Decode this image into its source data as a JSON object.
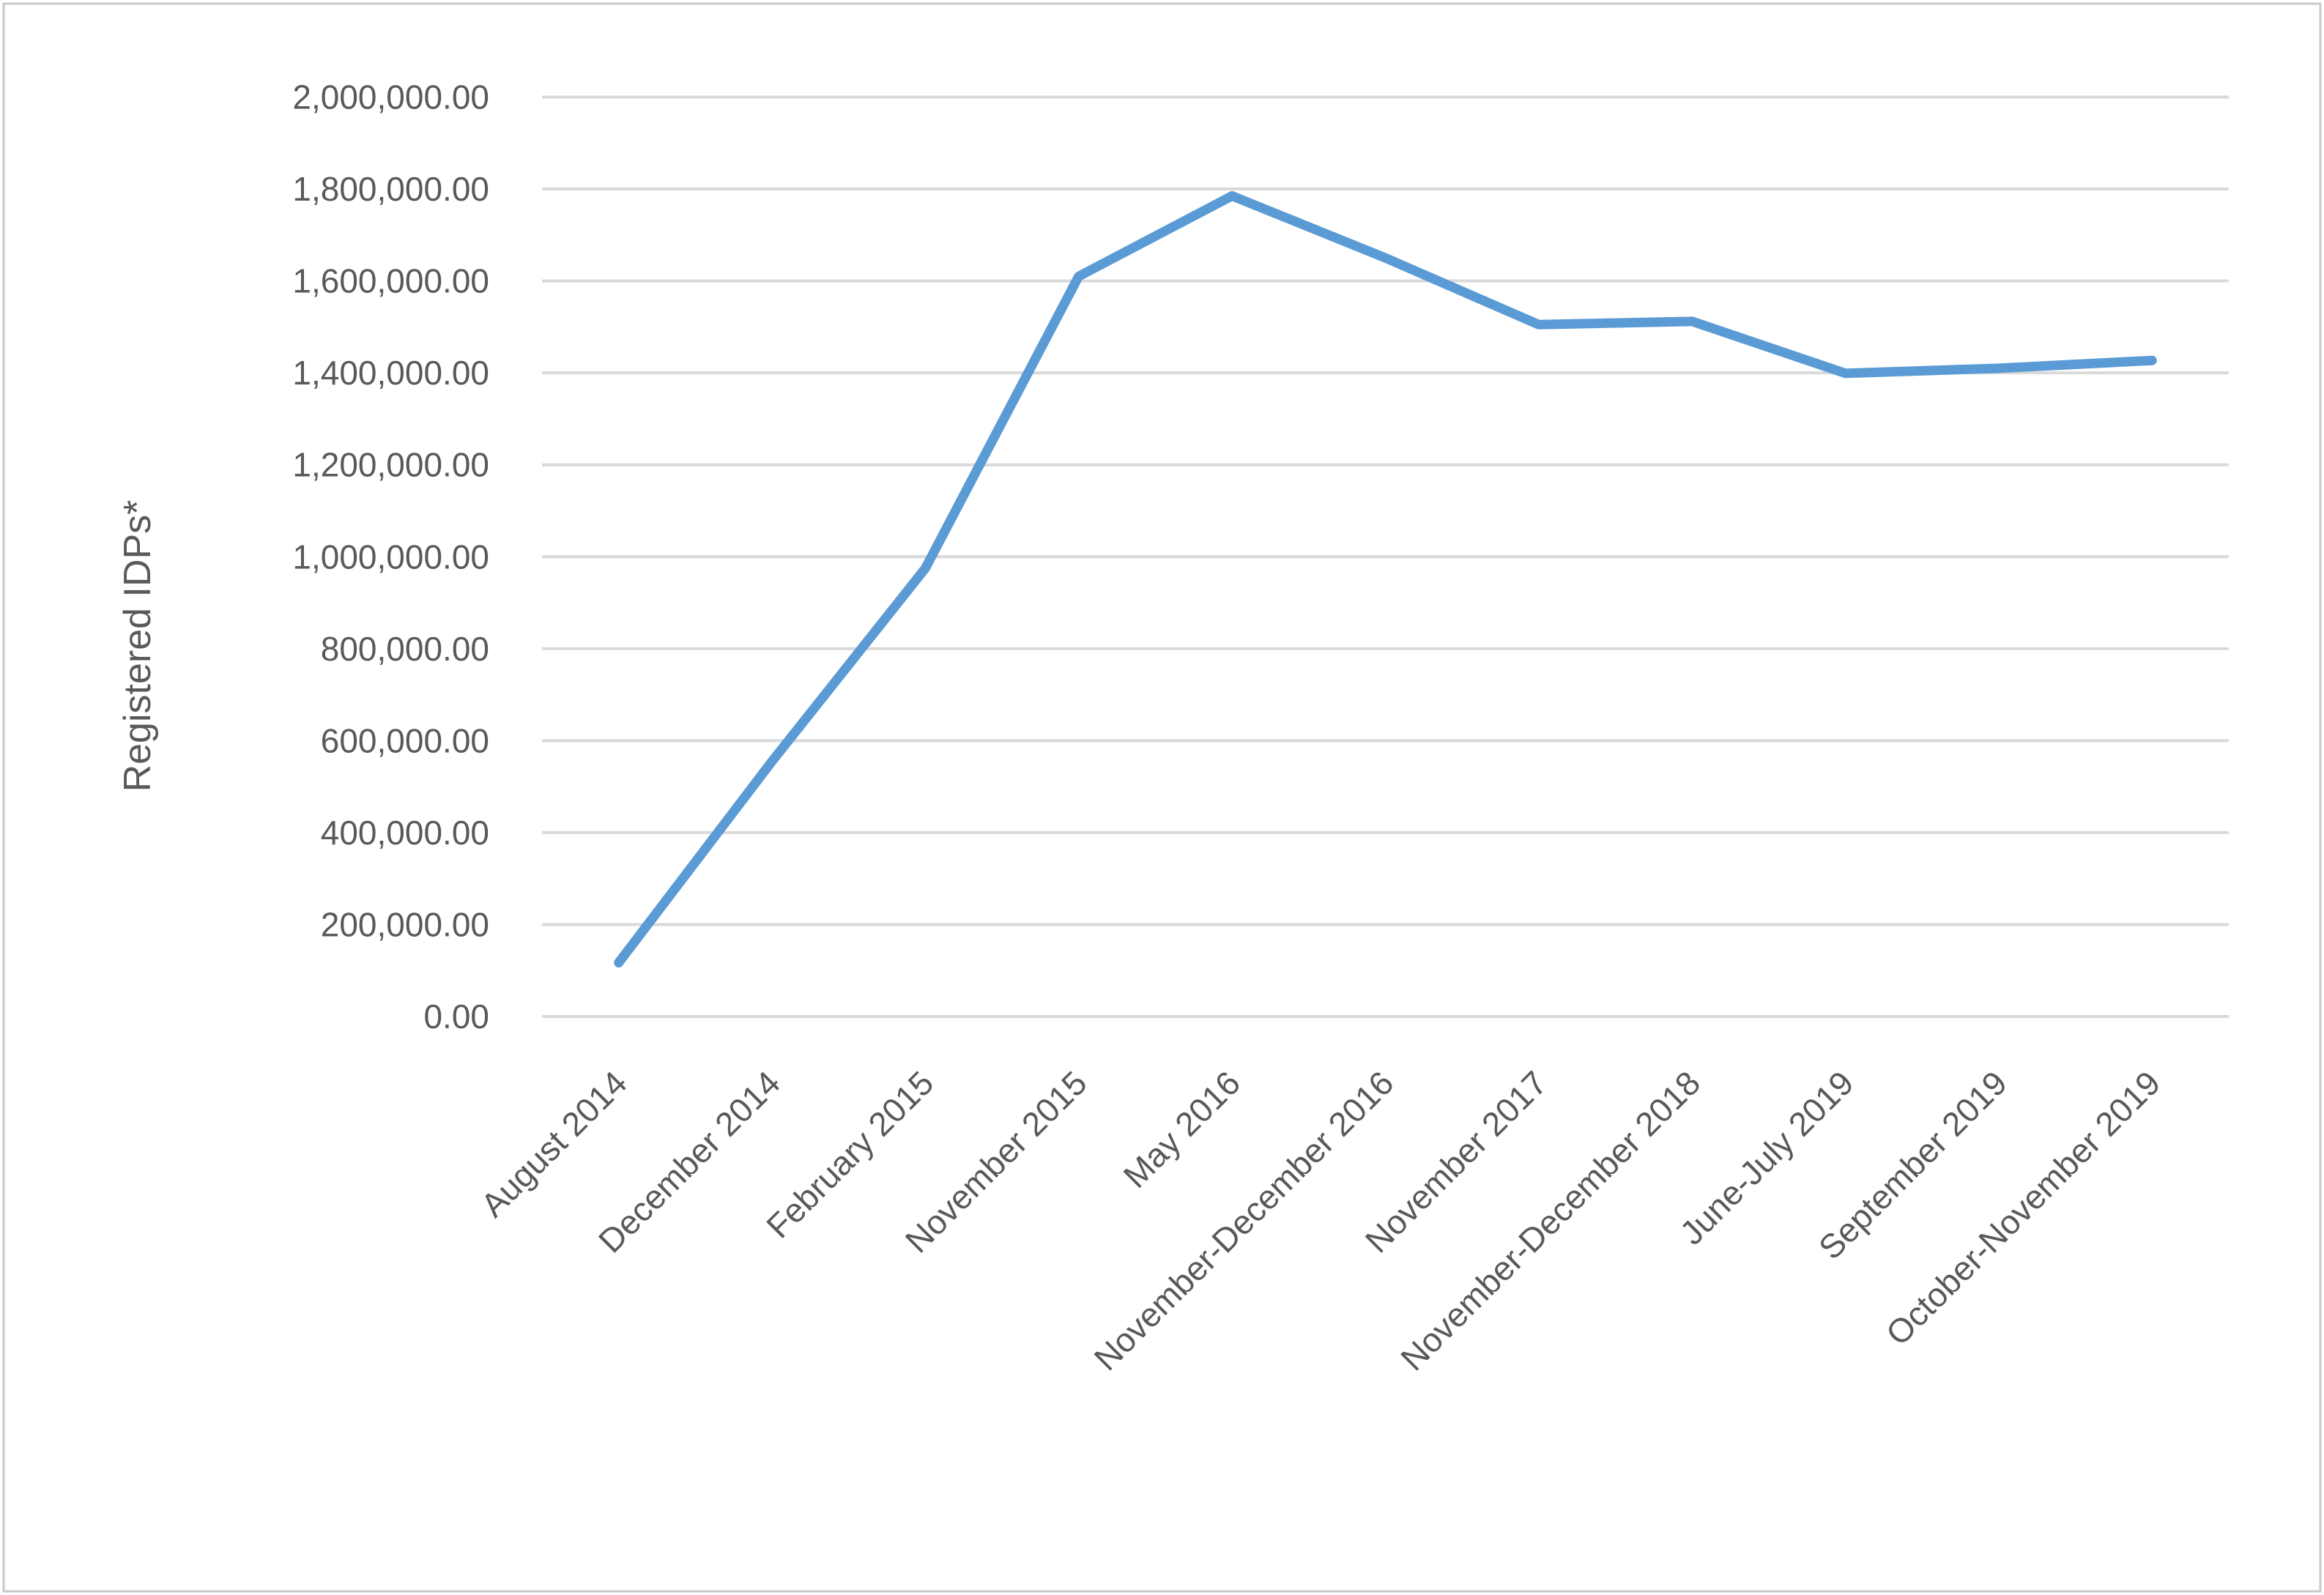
{
  "figure": {
    "background_color": "#ffffff",
    "border_color": "#c9c9c9"
  },
  "chart_data": {
    "type": "line",
    "title": "",
    "xlabel": "",
    "ylabel": "Registered IDPs*",
    "categories": [
      "August 2014",
      "December 2014",
      "February 2015",
      "November 2015",
      "May 2016",
      "November-December 2016",
      "November 2017",
      "November-December 2018",
      "June-July 2019",
      "September 2019",
      "October-November 2019"
    ],
    "values": [
      117000,
      555000,
      975000,
      1610000,
      1785000,
      1650000,
      1505000,
      1512000,
      1399000,
      1410000,
      1427000
    ],
    "ylim": [
      0,
      2000000
    ],
    "ytick_step": 200000,
    "ytick_labels": [
      "0.00",
      "200,000.00",
      "400,000.00",
      "600,000.00",
      "800,000.00",
      "1,000,000.00",
      "1,200,000.00",
      "1,400,000.00",
      "1,600,000.00",
      "1,800,000.00",
      "2,000,000.00"
    ],
    "grid": "horizontal",
    "gridline_color": "#d9d9d9",
    "line_color": "#5b9bd5",
    "tick_label_color": "#595959",
    "x_label_rotation_deg": -45,
    "legend": "none"
  }
}
